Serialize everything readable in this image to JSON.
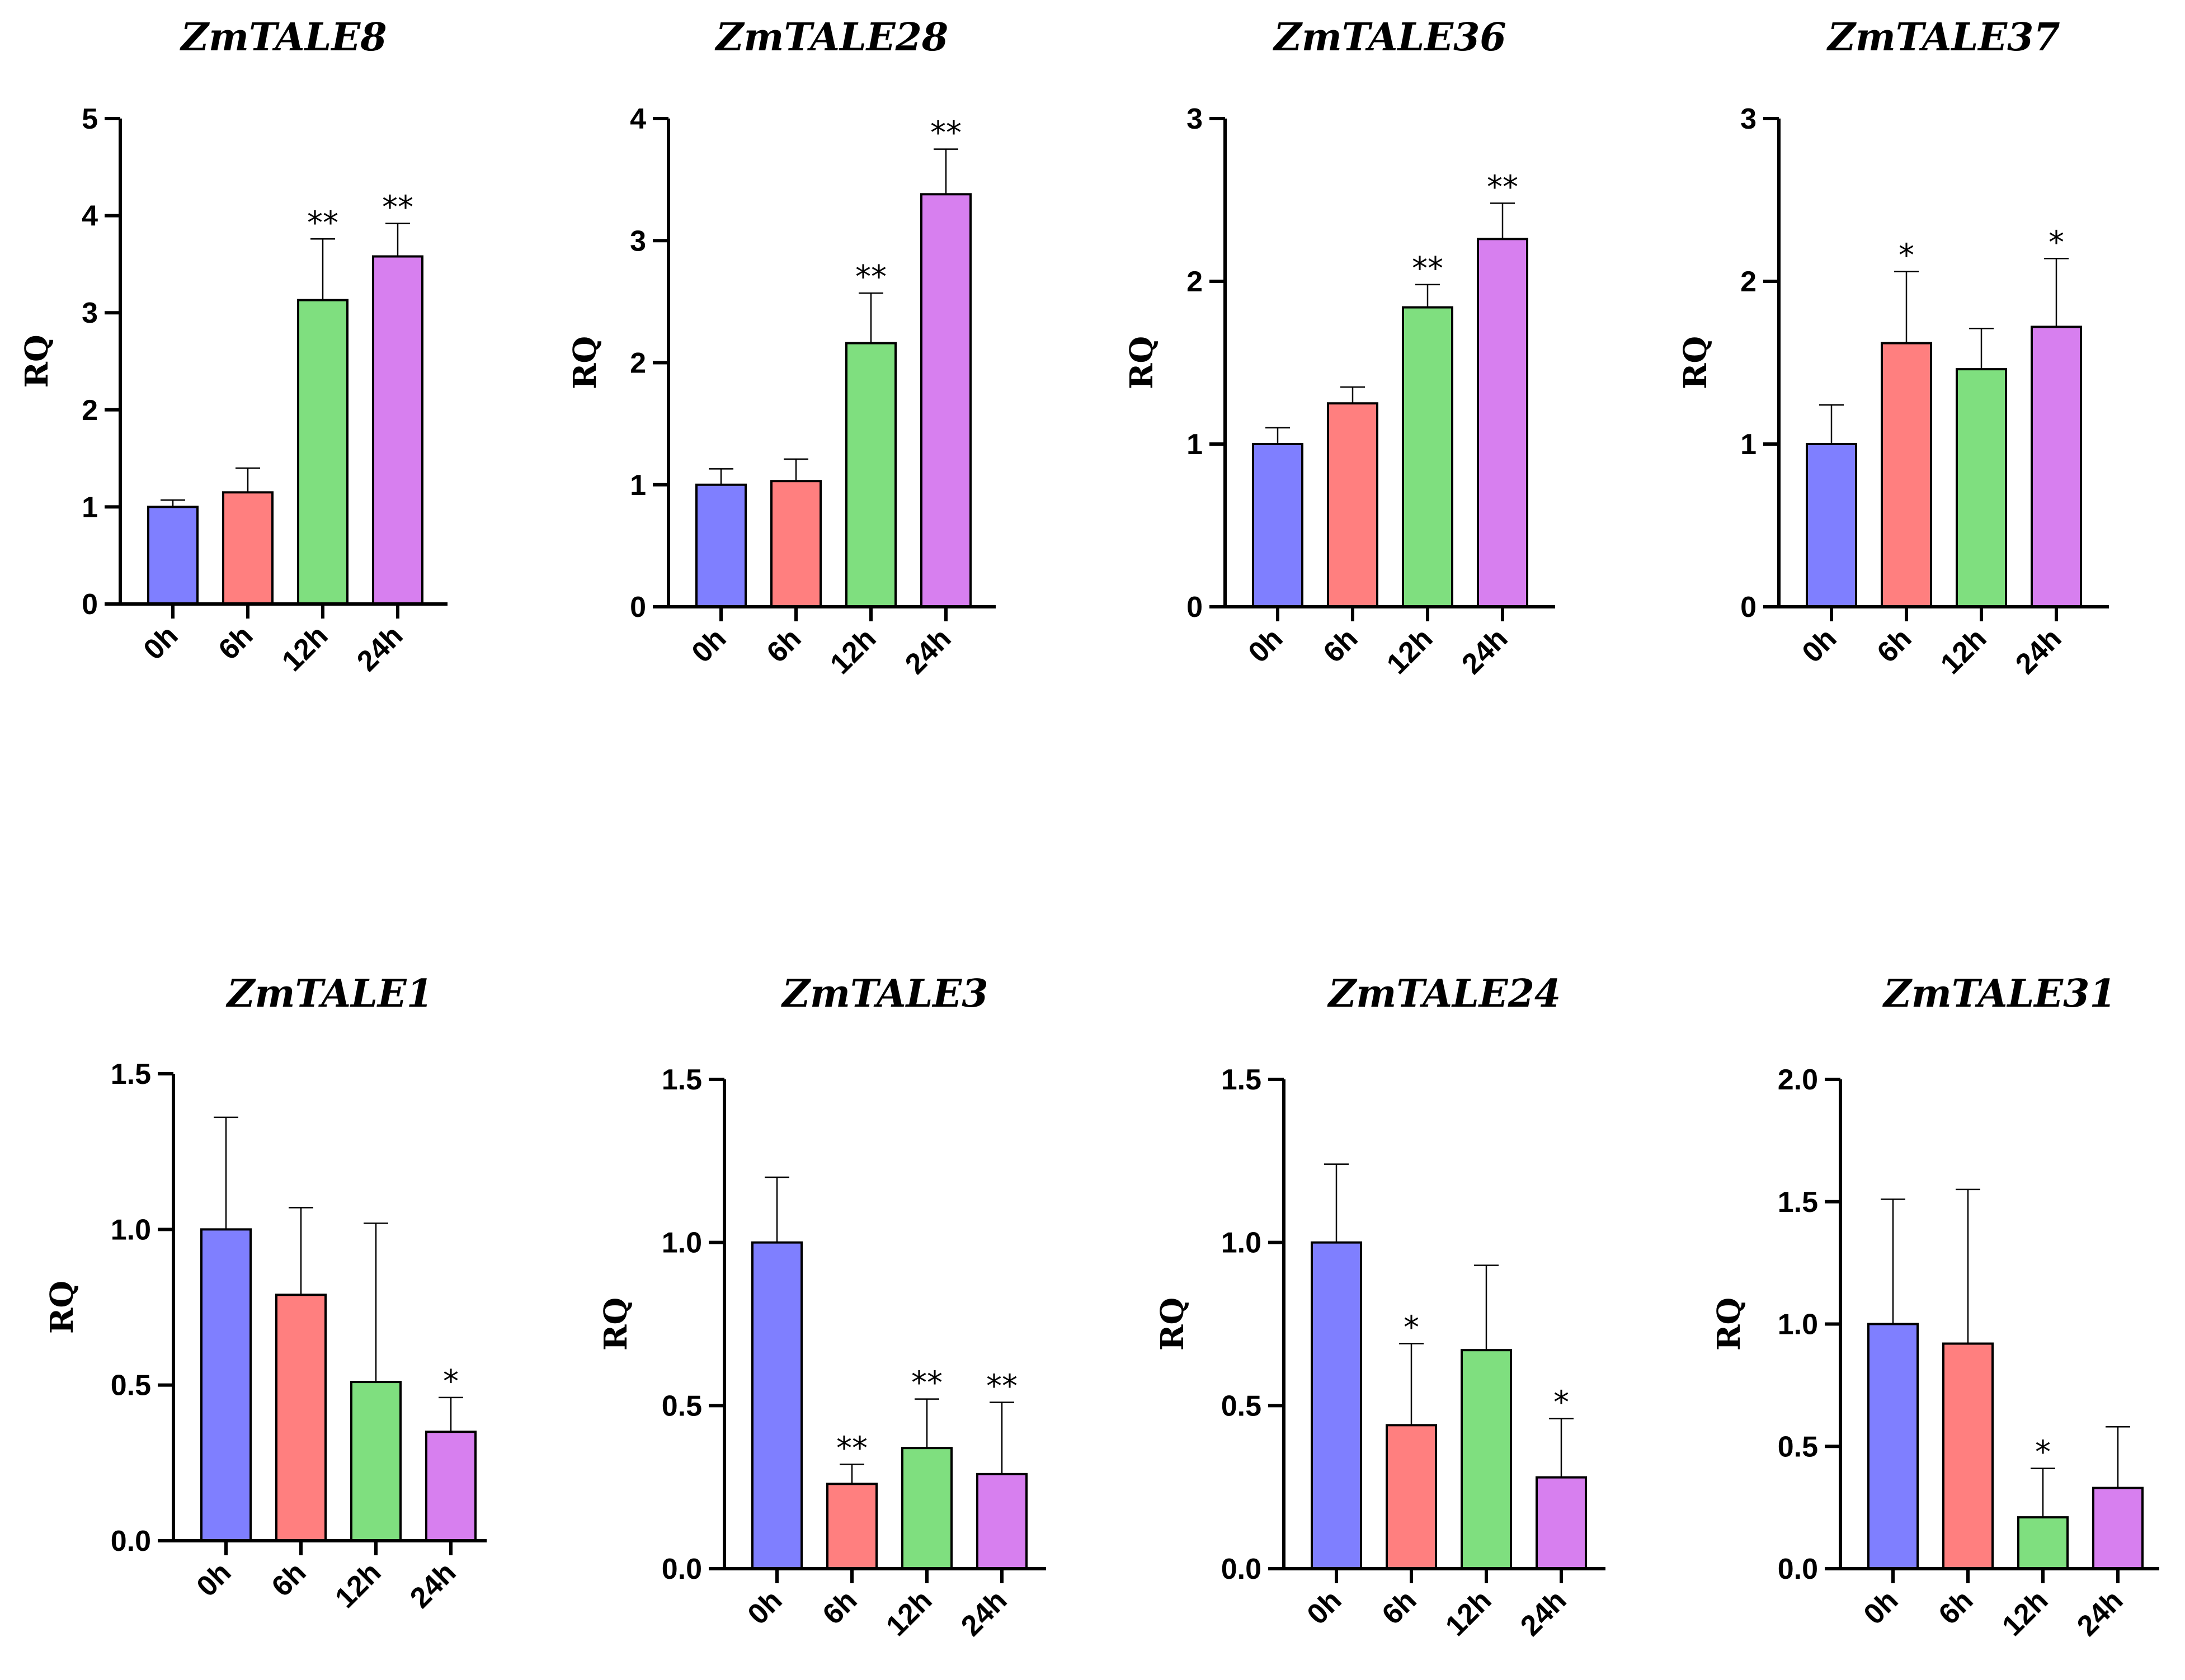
{
  "chart_data": [
    {
      "type": "bar",
      "title": "ZmTALE8",
      "ylabel": "RQ",
      "xlabel": "",
      "categories": [
        "0h",
        "6h",
        "12h",
        "24h"
      ],
      "values": [
        1.0,
        1.15,
        3.13,
        3.58
      ],
      "errors": [
        0.07,
        0.25,
        0.63,
        0.34
      ],
      "significance": [
        "",
        "",
        "**",
        "**"
      ],
      "ylim": [
        0,
        5
      ],
      "yticks": [
        "0",
        "1",
        "2",
        "3",
        "4",
        "5"
      ],
      "colors": [
        "#7f7fff",
        "#ff7f7f",
        "#7fdf7f",
        "#d77fef"
      ]
    },
    {
      "type": "bar",
      "title": "ZmTALE28",
      "ylabel": "RQ",
      "xlabel": "",
      "categories": [
        "0h",
        "6h",
        "12h",
        "24h"
      ],
      "values": [
        1.0,
        1.03,
        2.16,
        3.38
      ],
      "errors": [
        0.13,
        0.18,
        0.41,
        0.37
      ],
      "significance": [
        "",
        "",
        "**",
        "**"
      ],
      "ylim": [
        0,
        4
      ],
      "yticks": [
        "0",
        "1",
        "2",
        "3",
        "4"
      ],
      "colors": [
        "#7f7fff",
        "#ff7f7f",
        "#7fdf7f",
        "#d77fef"
      ]
    },
    {
      "type": "bar",
      "title": "ZmTALE36",
      "ylabel": "RQ",
      "xlabel": "",
      "categories": [
        "0h",
        "6h",
        "12h",
        "24h"
      ],
      "values": [
        1.0,
        1.25,
        1.84,
        2.26
      ],
      "errors": [
        0.1,
        0.1,
        0.14,
        0.22
      ],
      "significance": [
        "",
        "",
        "**",
        "**"
      ],
      "ylim": [
        0,
        3
      ],
      "yticks": [
        "0",
        "1",
        "2",
        "3"
      ],
      "colors": [
        "#7f7fff",
        "#ff7f7f",
        "#7fdf7f",
        "#d77fef"
      ]
    },
    {
      "type": "bar",
      "title": "ZmTALE37",
      "ylabel": "RQ",
      "xlabel": "",
      "categories": [
        "0h",
        "6h",
        "12h",
        "24h"
      ],
      "values": [
        1.0,
        1.62,
        1.46,
        1.72
      ],
      "errors": [
        0.24,
        0.44,
        0.25,
        0.42
      ],
      "significance": [
        "",
        "*",
        "",
        "*"
      ],
      "ylim": [
        0,
        3
      ],
      "yticks": [
        "0",
        "1",
        "2",
        "3"
      ],
      "colors": [
        "#7f7fff",
        "#ff7f7f",
        "#7fdf7f",
        "#d77fef"
      ]
    },
    {
      "type": "bar",
      "title": "ZmTALE1",
      "ylabel": "RQ",
      "xlabel": "",
      "categories": [
        "0h",
        "6h",
        "12h",
        "24h"
      ],
      "values": [
        1.0,
        0.79,
        0.51,
        0.35
      ],
      "errors": [
        0.36,
        0.28,
        0.51,
        0.11
      ],
      "significance": [
        "",
        "",
        "",
        "*"
      ],
      "ylim": [
        0,
        1.5
      ],
      "yticks": [
        "0.0",
        "0.5",
        "1.0",
        "1.5"
      ],
      "colors": [
        "#7f7fff",
        "#ff7f7f",
        "#7fdf7f",
        "#d77fef"
      ]
    },
    {
      "type": "bar",
      "title": "ZmTALE3",
      "ylabel": "RQ",
      "xlabel": "",
      "categories": [
        "0h",
        "6h",
        "12h",
        "24h"
      ],
      "values": [
        1.0,
        0.26,
        0.37,
        0.29
      ],
      "errors": [
        0.2,
        0.06,
        0.15,
        0.22
      ],
      "significance": [
        "",
        "**",
        "**",
        "**"
      ],
      "ylim": [
        0,
        1.5
      ],
      "yticks": [
        "0.0",
        "0.5",
        "1.0",
        "1.5"
      ],
      "colors": [
        "#7f7fff",
        "#ff7f7f",
        "#7fdf7f",
        "#d77fef"
      ]
    },
    {
      "type": "bar",
      "title": "ZmTALE24",
      "ylabel": "RQ",
      "xlabel": "",
      "categories": [
        "0h",
        "6h",
        "12h",
        "24h"
      ],
      "values": [
        1.0,
        0.44,
        0.67,
        0.28
      ],
      "errors": [
        0.24,
        0.25,
        0.26,
        0.18
      ],
      "significance": [
        "",
        "*",
        "",
        "*"
      ],
      "ylim": [
        0,
        1.5
      ],
      "yticks": [
        "0.0",
        "0.5",
        "1.0",
        "1.5"
      ],
      "colors": [
        "#7f7fff",
        "#ff7f7f",
        "#7fdf7f",
        "#d77fef"
      ]
    },
    {
      "type": "bar",
      "title": "ZmTALE31",
      "ylabel": "RQ",
      "xlabel": "",
      "categories": [
        "0h",
        "6h",
        "12h",
        "24h"
      ],
      "values": [
        1.0,
        0.92,
        0.21,
        0.33
      ],
      "errors": [
        0.51,
        0.63,
        0.2,
        0.25
      ],
      "significance": [
        "",
        "",
        "*",
        ""
      ],
      "ylim": [
        0,
        2.0
      ],
      "yticks": [
        "0.0",
        "0.5",
        "1.0",
        "1.5",
        "2.0"
      ],
      "colors": [
        "#7f7fff",
        "#ff7f7f",
        "#7fdf7f",
        "#d77fef"
      ]
    }
  ]
}
